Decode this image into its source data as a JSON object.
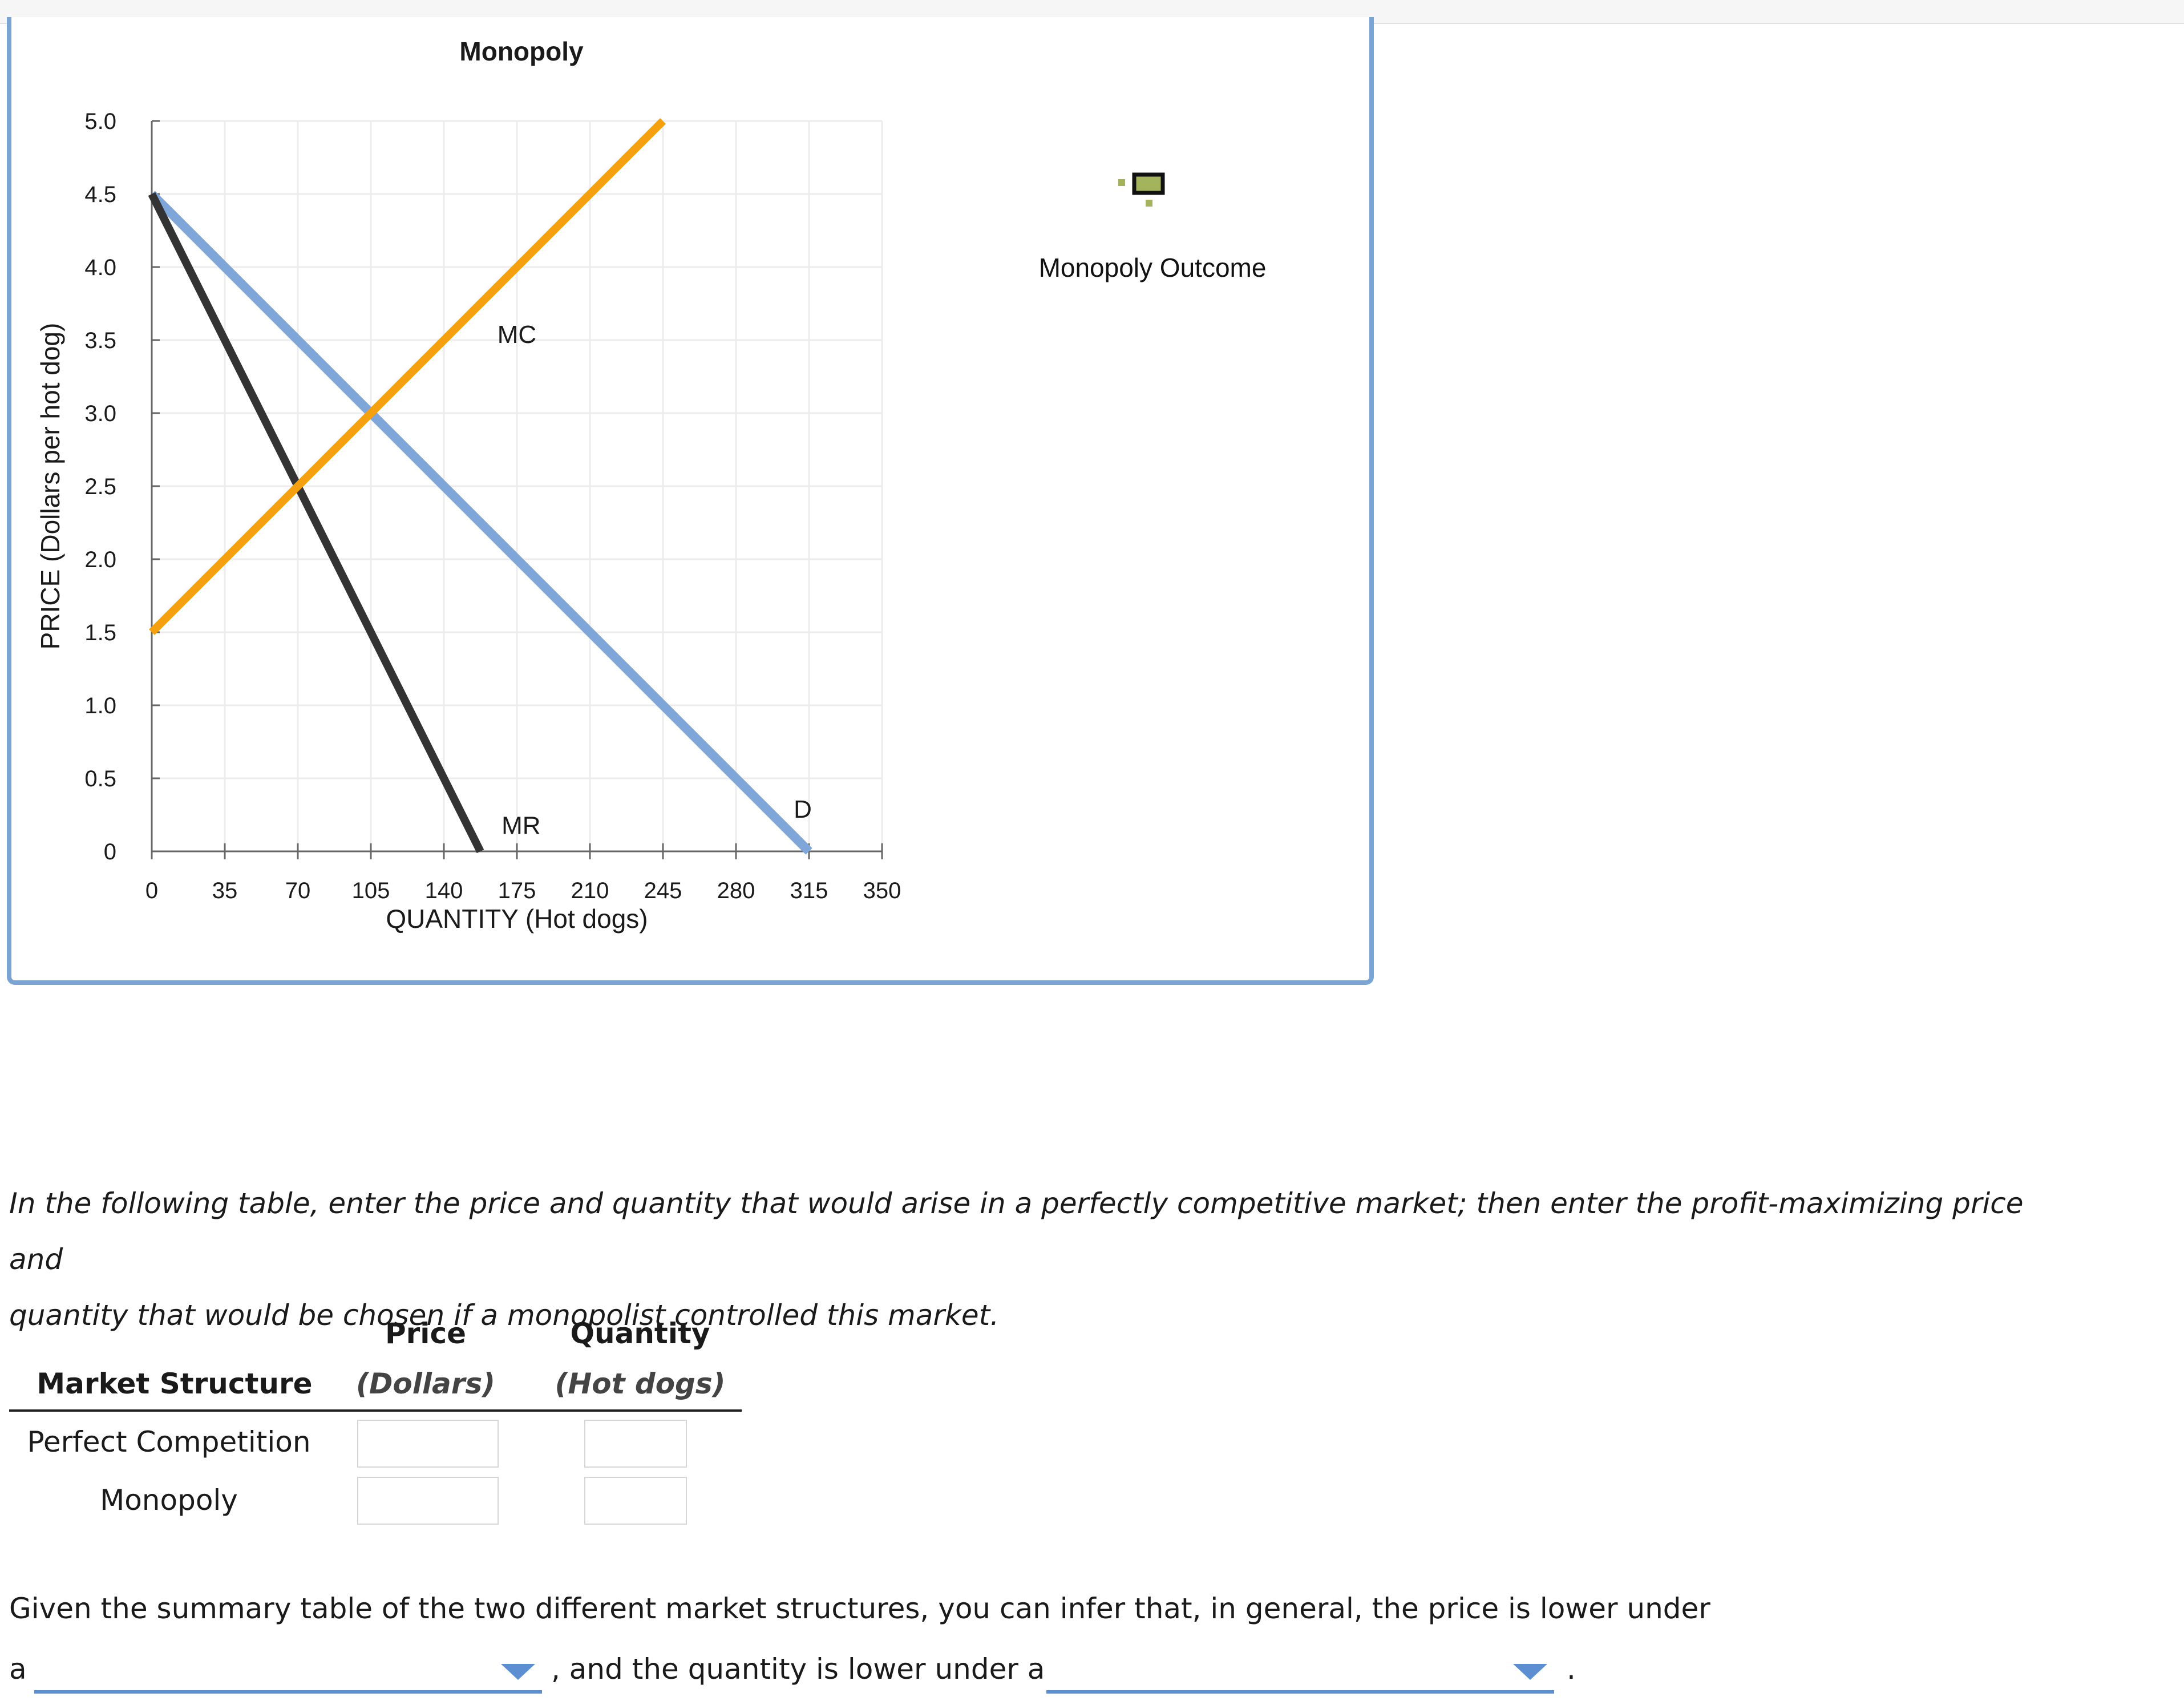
{
  "graph": {
    "title": "Monopoly",
    "legend_label": "Monopoly Outcome",
    "legend_icon": "monopoly-outcome-marker-icon"
  },
  "chart_data": {
    "type": "line",
    "title": "Monopoly",
    "xlabel": "QUANTITY (Hot dogs)",
    "ylabel": "PRICE (Dollars per hot dog)",
    "xlim": [
      0,
      350
    ],
    "ylim": [
      0,
      5
    ],
    "x_ticks": [
      "0",
      "35",
      "70",
      "105",
      "140",
      "175",
      "210",
      "245",
      "280",
      "315",
      "350"
    ],
    "y_ticks": [
      "0",
      "0.5",
      "1.0",
      "1.5",
      "2.0",
      "2.5",
      "3.0",
      "3.5",
      "4.0",
      "4.5",
      "5.0"
    ],
    "grid": true,
    "series": [
      {
        "name": "D",
        "color": "#7ea6d8",
        "points": [
          [
            0,
            4.5
          ],
          [
            315,
            0
          ]
        ]
      },
      {
        "name": "MR",
        "color": "#333333",
        "points": [
          [
            0,
            4.5
          ],
          [
            157.5,
            0
          ]
        ]
      },
      {
        "name": "MC",
        "color": "#f5a00f",
        "points": [
          [
            0,
            1.5
          ],
          [
            245,
            5.0
          ]
        ]
      }
    ]
  },
  "instructions": {
    "line1": "In the following table, enter the price and quantity that would arise in a perfectly competitive market; then enter the profit-maximizing price and",
    "line2": "quantity that would be chosen if a monopolist controlled this market."
  },
  "table": {
    "col_structure": "Market Structure",
    "col_price": "Price",
    "col_price_unit": "(Dollars)",
    "col_quantity": "Quantity",
    "col_quantity_unit": "(Hot dogs)",
    "rows": [
      {
        "label": "Perfect Competition",
        "price": "",
        "quantity": ""
      },
      {
        "label": "Monopoly",
        "price": "",
        "quantity": ""
      }
    ]
  },
  "summary": {
    "sentence": "Given the summary table of the two different market structures, you can infer that, in general, the price is lower under",
    "prefix": "a",
    "middle": ", and the quantity is lower under a",
    "suffix": ".",
    "dropdown1_value": "",
    "dropdown2_value": ""
  },
  "colors": {
    "panel_border": "#7aa4d4",
    "dropdown_accent": "#5b8fd1",
    "legend_marker": "#a4b45c"
  }
}
